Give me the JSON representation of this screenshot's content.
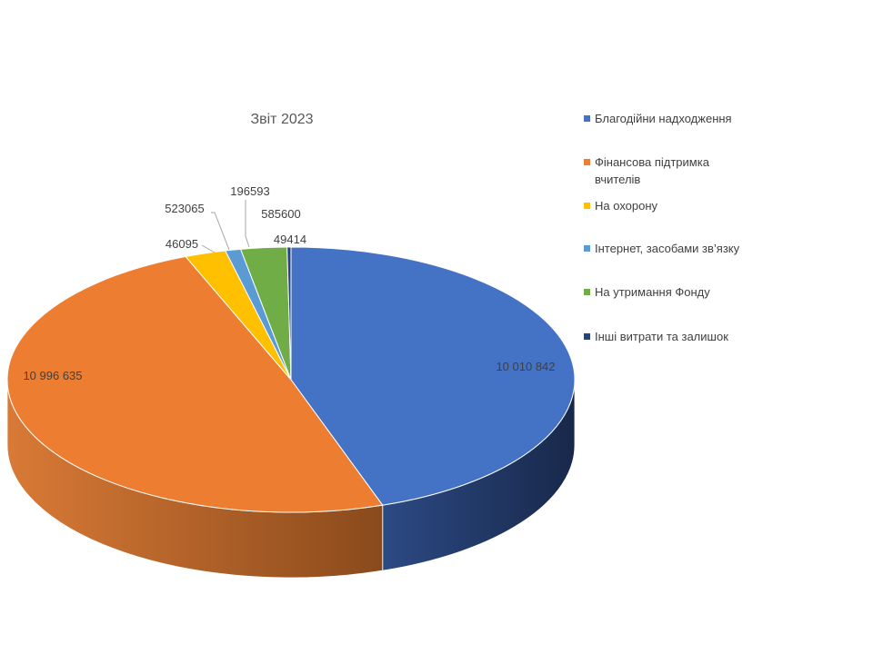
{
  "chart_data": {
    "type": "pie",
    "title": "Звіт 2023",
    "legend_position": "right",
    "slices": [
      {
        "label": "Благодійни надходження",
        "value": 10010842,
        "value_label": "10 010 842",
        "color": "#4472C4",
        "dark": "#1F3360"
      },
      {
        "label": "Фінансова підтримка вчителів",
        "value": 10996635,
        "value_label": "10 996 635",
        "color": "#ED7D31",
        "dark": "#8F4A1A"
      },
      {
        "label": "На охорону",
        "value": 523065,
        "value_label": "523065",
        "color": "#FFC000",
        "dark": "#997300"
      },
      {
        "label": "Інтернет, засобами зв’язку",
        "value": 196593,
        "value_label": "196593",
        "color": "#5B9BD5",
        "dark": "#2E5577"
      },
      {
        "label": "На утримання Фонду",
        "value": 585600,
        "value_label": "585600",
        "color": "#70AD47",
        "dark": "#3E6427"
      },
      {
        "label": "Інші витрати та залишок",
        "value": 49414,
        "value_label": "49414",
        "color": "#264478",
        "dark": "#14243F"
      }
    ],
    "extra_labels": [
      {
        "value_label": "46095"
      }
    ],
    "legend_lines": [
      [
        "Благодійни надходження"
      ],
      [
        "Фінансова підтримка",
        "вчителів"
      ],
      [
        "На охорону"
      ],
      [
        "Інтернет, засобами зв’язку"
      ],
      [
        "На утримання Фонду"
      ],
      [
        "Інші витрати та залишок"
      ]
    ]
  }
}
